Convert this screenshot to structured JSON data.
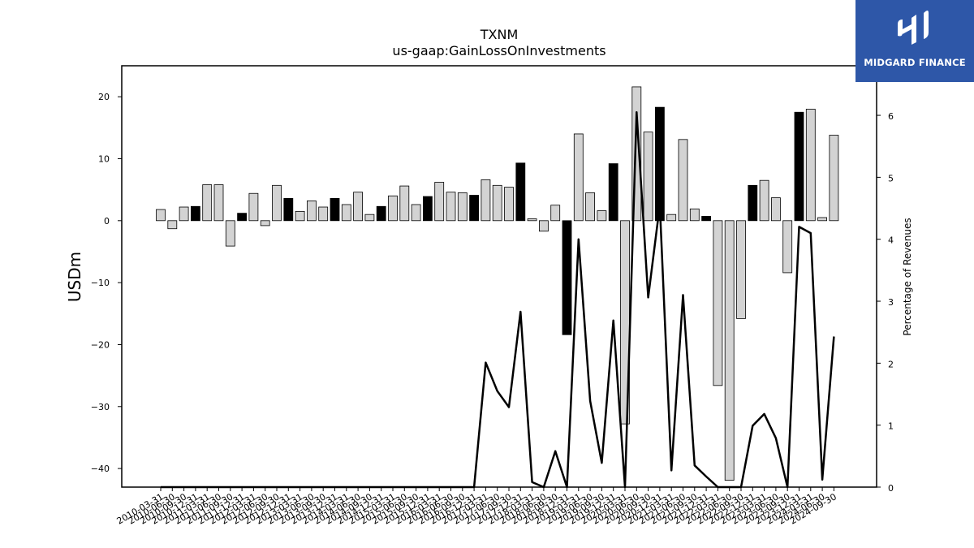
{
  "logo": {
    "text": "MIDGARD FINANCE",
    "color": "#2e57a8"
  },
  "chart_data": {
    "type": "bar",
    "title": "TXNM",
    "subtitle": "us-gaap:GainLossOnInvestments",
    "ylabel": "USDm",
    "y2label": "Percentage of Revenues",
    "ylim": [
      -43,
      25
    ],
    "y2lim": [
      0,
      6.8
    ],
    "yticks": [
      20,
      10,
      0,
      -10,
      -20,
      -30,
      -40
    ],
    "y2ticks": [
      0,
      1,
      2,
      3,
      4,
      5,
      6
    ],
    "grid": false,
    "bar_colors": {
      "quarterly": "#d3d3d3",
      "annual": "#000000"
    },
    "line_color": "#000000",
    "categories": [
      "2010-03-31",
      "2010-06-30",
      "2010-09-30",
      "2010-12-31",
      "2011-03-31",
      "2011-06-30",
      "2011-09-30",
      "2011-12-31",
      "2012-03-31",
      "2012-06-30",
      "2012-09-30",
      "2012-12-31",
      "2013-03-31",
      "2013-06-30",
      "2013-09-30",
      "2013-12-31",
      "2014-03-31",
      "2014-06-30",
      "2014-09-30",
      "2014-12-31",
      "2015-03-31",
      "2015-06-30",
      "2015-09-30",
      "2015-12-31",
      "2016-03-31",
      "2016-06-30",
      "2016-09-30",
      "2016-12-31",
      "2017-03-31",
      "2017-06-30",
      "2017-09-30",
      "2017-12-31",
      "2018-03-31",
      "2018-06-30",
      "2018-09-30",
      "2018-12-31",
      "2019-03-31",
      "2019-06-30",
      "2019-09-30",
      "2019-12-31",
      "2020-03-31",
      "2020-06-30",
      "2020-09-30",
      "2020-12-31",
      "2021-03-31",
      "2021-06-30",
      "2021-09-30",
      "2021-12-31",
      "2022-03-31",
      "2022-06-30",
      "2022-09-30",
      "2022-12-31",
      "2023-03-31",
      "2023-06-30",
      "2023-09-30",
      "2023-12-31",
      "2024-03-31",
      "2024-06-30",
      "2024-09-30"
    ],
    "series": [
      {
        "name": "GainLossOnInvestments",
        "kind": "bar",
        "values": [
          1.8,
          -1.3,
          2.2,
          2.3,
          5.8,
          5.8,
          -4.1,
          1.2,
          4.4,
          -0.8,
          5.7,
          3.6,
          1.5,
          3.2,
          2.2,
          3.6,
          2.6,
          4.6,
          1.0,
          2.3,
          4.0,
          5.6,
          2.6,
          3.9,
          6.2,
          4.6,
          4.5,
          4.1,
          6.6,
          5.7,
          5.4,
          9.3,
          0.3,
          -1.7,
          2.5,
          -18.4,
          14.0,
          4.5,
          1.6,
          9.2,
          -32.8,
          21.6,
          14.3,
          18.3,
          1.0,
          13.1,
          1.9,
          0.7,
          -26.6,
          -41.9,
          -15.8,
          5.7,
          6.5,
          3.7,
          -8.4,
          17.5,
          18.0,
          0.5,
          13.8
        ],
        "annual": [
          false,
          false,
          false,
          true,
          false,
          false,
          false,
          true,
          false,
          false,
          false,
          true,
          false,
          false,
          false,
          true,
          false,
          false,
          false,
          true,
          false,
          false,
          false,
          true,
          false,
          false,
          false,
          true,
          false,
          false,
          false,
          true,
          false,
          false,
          false,
          true,
          false,
          false,
          false,
          true,
          false,
          false,
          false,
          true,
          false,
          false,
          false,
          true,
          false,
          false,
          false,
          true,
          false,
          false,
          false,
          true,
          false,
          false,
          false
        ]
      },
      {
        "name": "Percentage of Revenues",
        "kind": "line",
        "axis": "y2",
        "values": [
          0,
          0,
          0,
          0,
          0,
          0,
          0,
          0,
          0,
          0,
          0,
          0,
          0,
          0,
          0,
          0,
          0,
          0,
          0,
          0,
          0,
          0,
          0,
          0,
          0,
          0,
          0,
          0,
          2.01,
          1.55,
          1.29,
          2.83,
          0.08,
          0,
          0.58,
          0,
          4.0,
          1.39,
          0.39,
          2.69,
          0,
          6.05,
          3.06,
          4.55,
          0.27,
          3.1,
          0.35,
          0.17,
          0,
          0,
          0,
          0.99,
          1.18,
          0.79,
          0,
          4.2,
          4.1,
          0.12,
          2.43
        ]
      }
    ]
  }
}
